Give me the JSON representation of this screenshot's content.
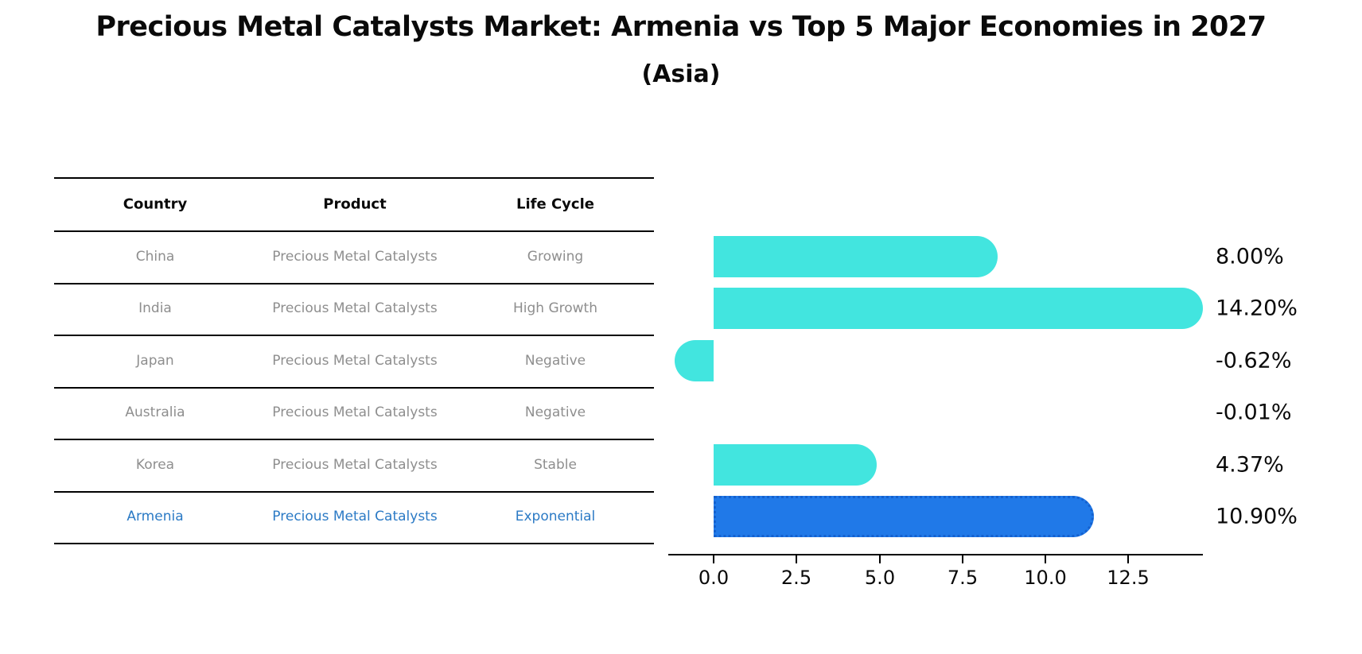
{
  "title": "Precious Metal Catalysts Market: Armenia vs Top 5 Major Economies in 2027",
  "subtitle": "(Asia)",
  "table": {
    "headers": [
      "Country",
      "Product",
      "Life Cycle"
    ],
    "rows": [
      {
        "country": "China",
        "product": "Precious Metal Catalysts",
        "life_cycle": "Growing",
        "highlight": false
      },
      {
        "country": "India",
        "product": "Precious Metal Catalysts",
        "life_cycle": "High Growth",
        "highlight": false
      },
      {
        "country": "Japan",
        "product": "Precious Metal Catalysts",
        "life_cycle": "Negative",
        "highlight": false
      },
      {
        "country": "Australia",
        "product": "Precious Metal Catalysts",
        "life_cycle": "Negative",
        "highlight": false
      },
      {
        "country": "Korea",
        "product": "Precious Metal Catalysts",
        "life_cycle": "Stable",
        "highlight": false
      },
      {
        "country": "Armenia",
        "product": "Precious Metal Catalysts",
        "life_cycle": "Exponential",
        "highlight": true
      }
    ]
  },
  "chart_data": {
    "type": "bar",
    "orientation": "horizontal",
    "categories": [
      "China",
      "India",
      "Japan",
      "Australia",
      "Korea",
      "Armenia"
    ],
    "values": [
      8.0,
      14.2,
      -0.62,
      -0.01,
      4.37,
      10.9
    ],
    "value_labels": [
      "8.00%",
      "14.20%",
      "-0.62%",
      "-0.01%",
      "4.37%",
      "10.90%"
    ],
    "highlight_index": 5,
    "x_ticks": [
      0.0,
      2.5,
      5.0,
      7.5,
      10.0,
      12.5
    ],
    "x_tick_labels": [
      "0.0",
      "2.5",
      "5.0",
      "7.5",
      "10.0",
      "12.5"
    ],
    "xlim": [
      -1.35,
      14.75
    ],
    "grid": false,
    "legend": false,
    "bar_color": "#42E5DF",
    "highlight_bar_color": "#2079E8",
    "highlight_bar_border_color": "#1461CF",
    "title": "Precious Metal Catalysts Market: Armenia vs Top 5 Major Economies in 2027",
    "subtitle": "(Asia)",
    "xlabel": "",
    "ylabel": ""
  }
}
